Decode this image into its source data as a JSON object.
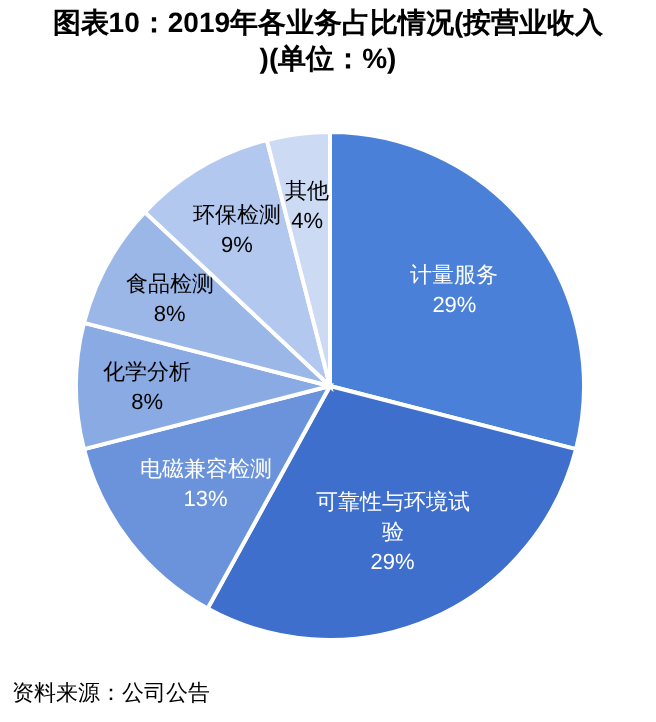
{
  "chart_data": {
    "type": "pie",
    "title": "图表10：2019年各业务占比情况(按营业收入)(单位：%)",
    "categories": [
      "计量服务",
      "可靠性与环境试验",
      "电磁兼容检测",
      "化学分析",
      "食品检测",
      "环保检测",
      "其他"
    ],
    "values": [
      29,
      29,
      13,
      8,
      8,
      9,
      4
    ],
    "value_labels": [
      "29%",
      "29%",
      "13%",
      "8%",
      "8%",
      "9%",
      "4%"
    ],
    "colors": [
      "#4a80d8",
      "#3e6fcc",
      "#6b93dc",
      "#8aaae3",
      "#9bb7e8",
      "#b3c8ee",
      "#ccdaf4"
    ],
    "annotations": [
      "资料来源：公司公告"
    ]
  }
}
